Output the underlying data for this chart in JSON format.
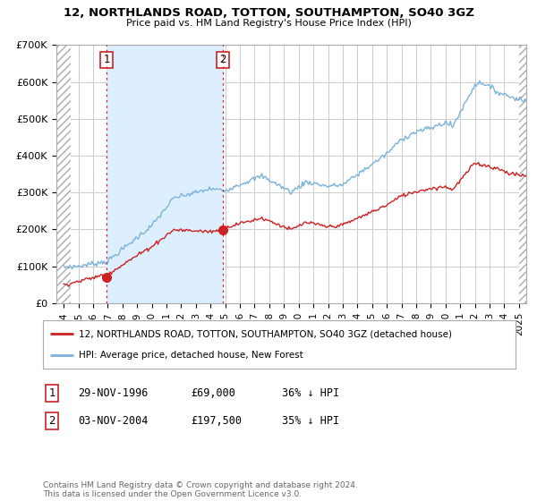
{
  "title": "12, NORTHLANDS ROAD, TOTTON, SOUTHAMPTON, SO40 3GZ",
  "subtitle": "Price paid vs. HM Land Registry's House Price Index (HPI)",
  "background_color": "#ffffff",
  "plot_bg_color": "#ffffff",
  "grid_color": "#cccccc",
  "purchase1": {
    "date_num": 1996.91,
    "price": 69000,
    "label": "1",
    "date_str": "29-NOV-1996",
    "pct": "36% ↓ HPI"
  },
  "purchase2": {
    "date_num": 2004.84,
    "price": 197500,
    "label": "2",
    "date_str": "03-NOV-2004",
    "pct": "35% ↓ HPI"
  },
  "legend_property": "12, NORTHLANDS ROAD, TOTTON, SOUTHAMPTON, SO40 3GZ (detached house)",
  "legend_hpi": "HPI: Average price, detached house, New Forest",
  "footer": "Contains HM Land Registry data © Crown copyright and database right 2024.\nThis data is licensed under the Open Government Licence v3.0.",
  "property_line_color": "#cc2222",
  "hpi_line_color": "#7bb3d9",
  "hpi_fill_color": "#ddeeff",
  "marker_color": "#cc2222",
  "dashed_line_color": "#cc2222",
  "box_color": "#cc2222",
  "ylim": [
    0,
    700000
  ],
  "xlim_start": 1993.5,
  "xlim_end": 2025.5,
  "hatch_end": 1994.5,
  "price1_str": "£69,000",
  "price2_str": "£197,500"
}
